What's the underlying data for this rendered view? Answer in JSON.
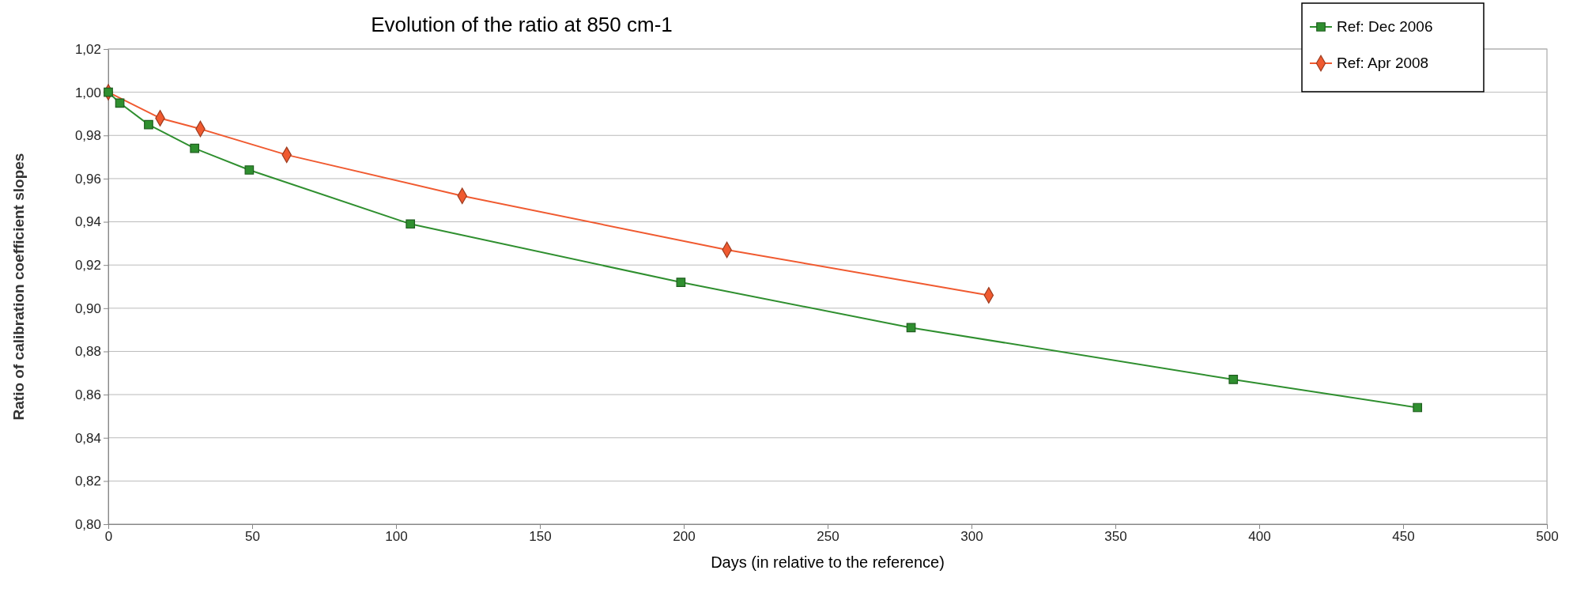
{
  "chart_data": {
    "type": "line",
    "title": "Evolution of the ratio at 850 cm-1",
    "xlabel": "Days (in relative to the reference)",
    "ylabel": "Ratio of calibration coefficient slopes",
    "series": [
      {
        "name": "Ref: Dec 2006",
        "color": "#2f8f2f",
        "marker": "square",
        "x": [
          0,
          4,
          14,
          30,
          49,
          105,
          199,
          279,
          391,
          455
        ],
        "values": [
          1.0,
          0.995,
          0.985,
          0.974,
          0.964,
          0.939,
          0.912,
          0.891,
          0.867,
          0.854
        ]
      },
      {
        "name": "Ref: Apr 2008",
        "color": "#f05a30",
        "marker": "diamond",
        "x": [
          0,
          18,
          32,
          62,
          123,
          215,
          306
        ],
        "values": [
          1.0,
          0.988,
          0.983,
          0.971,
          0.952,
          0.927,
          0.906
        ]
      }
    ],
    "xlim": [
      0,
      500
    ],
    "xticks": [
      0,
      50,
      100,
      150,
      200,
      250,
      300,
      350,
      400,
      450,
      500
    ],
    "ylim": [
      0.8,
      1.02
    ],
    "yticks": [
      {
        "value": 0.8,
        "label": "0,80"
      },
      {
        "value": 0.82,
        "label": "0,82"
      },
      {
        "value": 0.84,
        "label": "0,84"
      },
      {
        "value": 0.86,
        "label": "0,86"
      },
      {
        "value": 0.88,
        "label": "0,88"
      },
      {
        "value": 0.9,
        "label": "0,90"
      },
      {
        "value": 0.92,
        "label": "0,92"
      },
      {
        "value": 0.94,
        "label": "0,94"
      },
      {
        "value": 0.96,
        "label": "0,96"
      },
      {
        "value": 0.98,
        "label": "0,98"
      },
      {
        "value": 1.0,
        "label": "1,00"
      },
      {
        "value": 1.02,
        "label": "1,02"
      }
    ],
    "grid": "y",
    "legend": "top right",
    "line_style": "solid"
  }
}
